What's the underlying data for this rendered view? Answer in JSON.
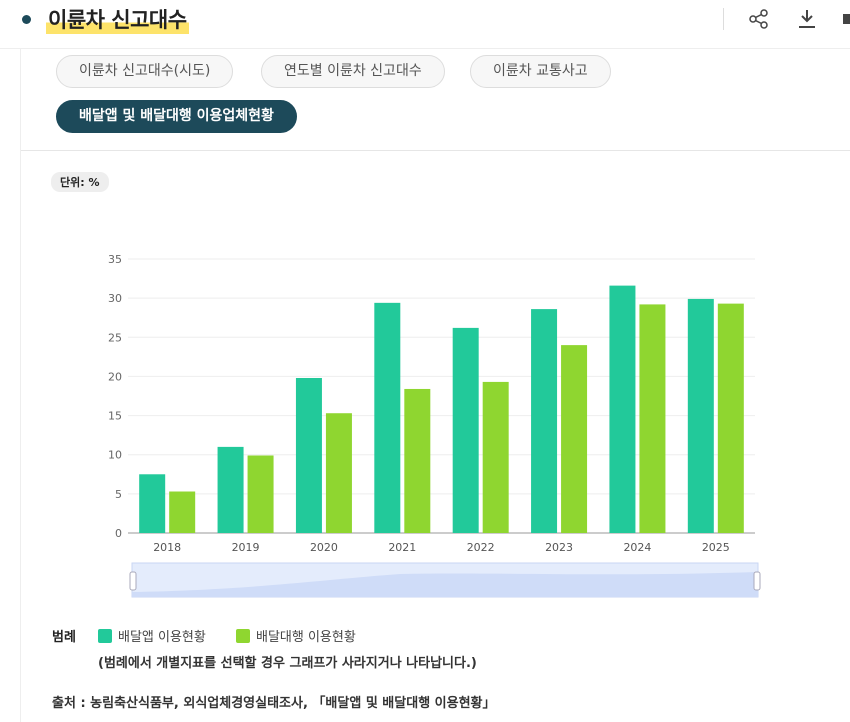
{
  "header": {
    "title": "이륜차 신고대수"
  },
  "tabs": [
    "이륜차 신고대수(시도)",
    "연도별 이륜차 신고대수",
    "이륜차 교통사고",
    "배달앱 및 배달대행 이용업체현황"
  ],
  "unit": "단위: %",
  "chart_data": {
    "type": "bar",
    "categories": [
      "2018",
      "2019",
      "2020",
      "2021",
      "2022",
      "2023",
      "2024",
      "2025"
    ],
    "series": [
      {
        "name": "배달앱 이용현황",
        "color": "#22c99a",
        "values": [
          7.5,
          11.0,
          19.8,
          29.4,
          26.2,
          28.6,
          31.6,
          29.9
        ]
      },
      {
        "name": "배달대행 이용현황",
        "color": "#8fd630",
        "values": [
          5.3,
          9.9,
          15.3,
          18.4,
          19.3,
          24.0,
          29.2,
          29.3
        ]
      }
    ],
    "ylim": [
      0,
      35
    ],
    "yticks": [
      0,
      5,
      10,
      15,
      20,
      25,
      30,
      35
    ],
    "grid": true
  },
  "legend_title": "범례",
  "legend_note": "(범례에서 개별지표를 선택할 경우 그래프가 사라지거나 나타납니다.)",
  "source": "출처 : 농림축산식품부, 외식업체경영실태조사, 「배달앱 및 배달대행 이용현황」"
}
